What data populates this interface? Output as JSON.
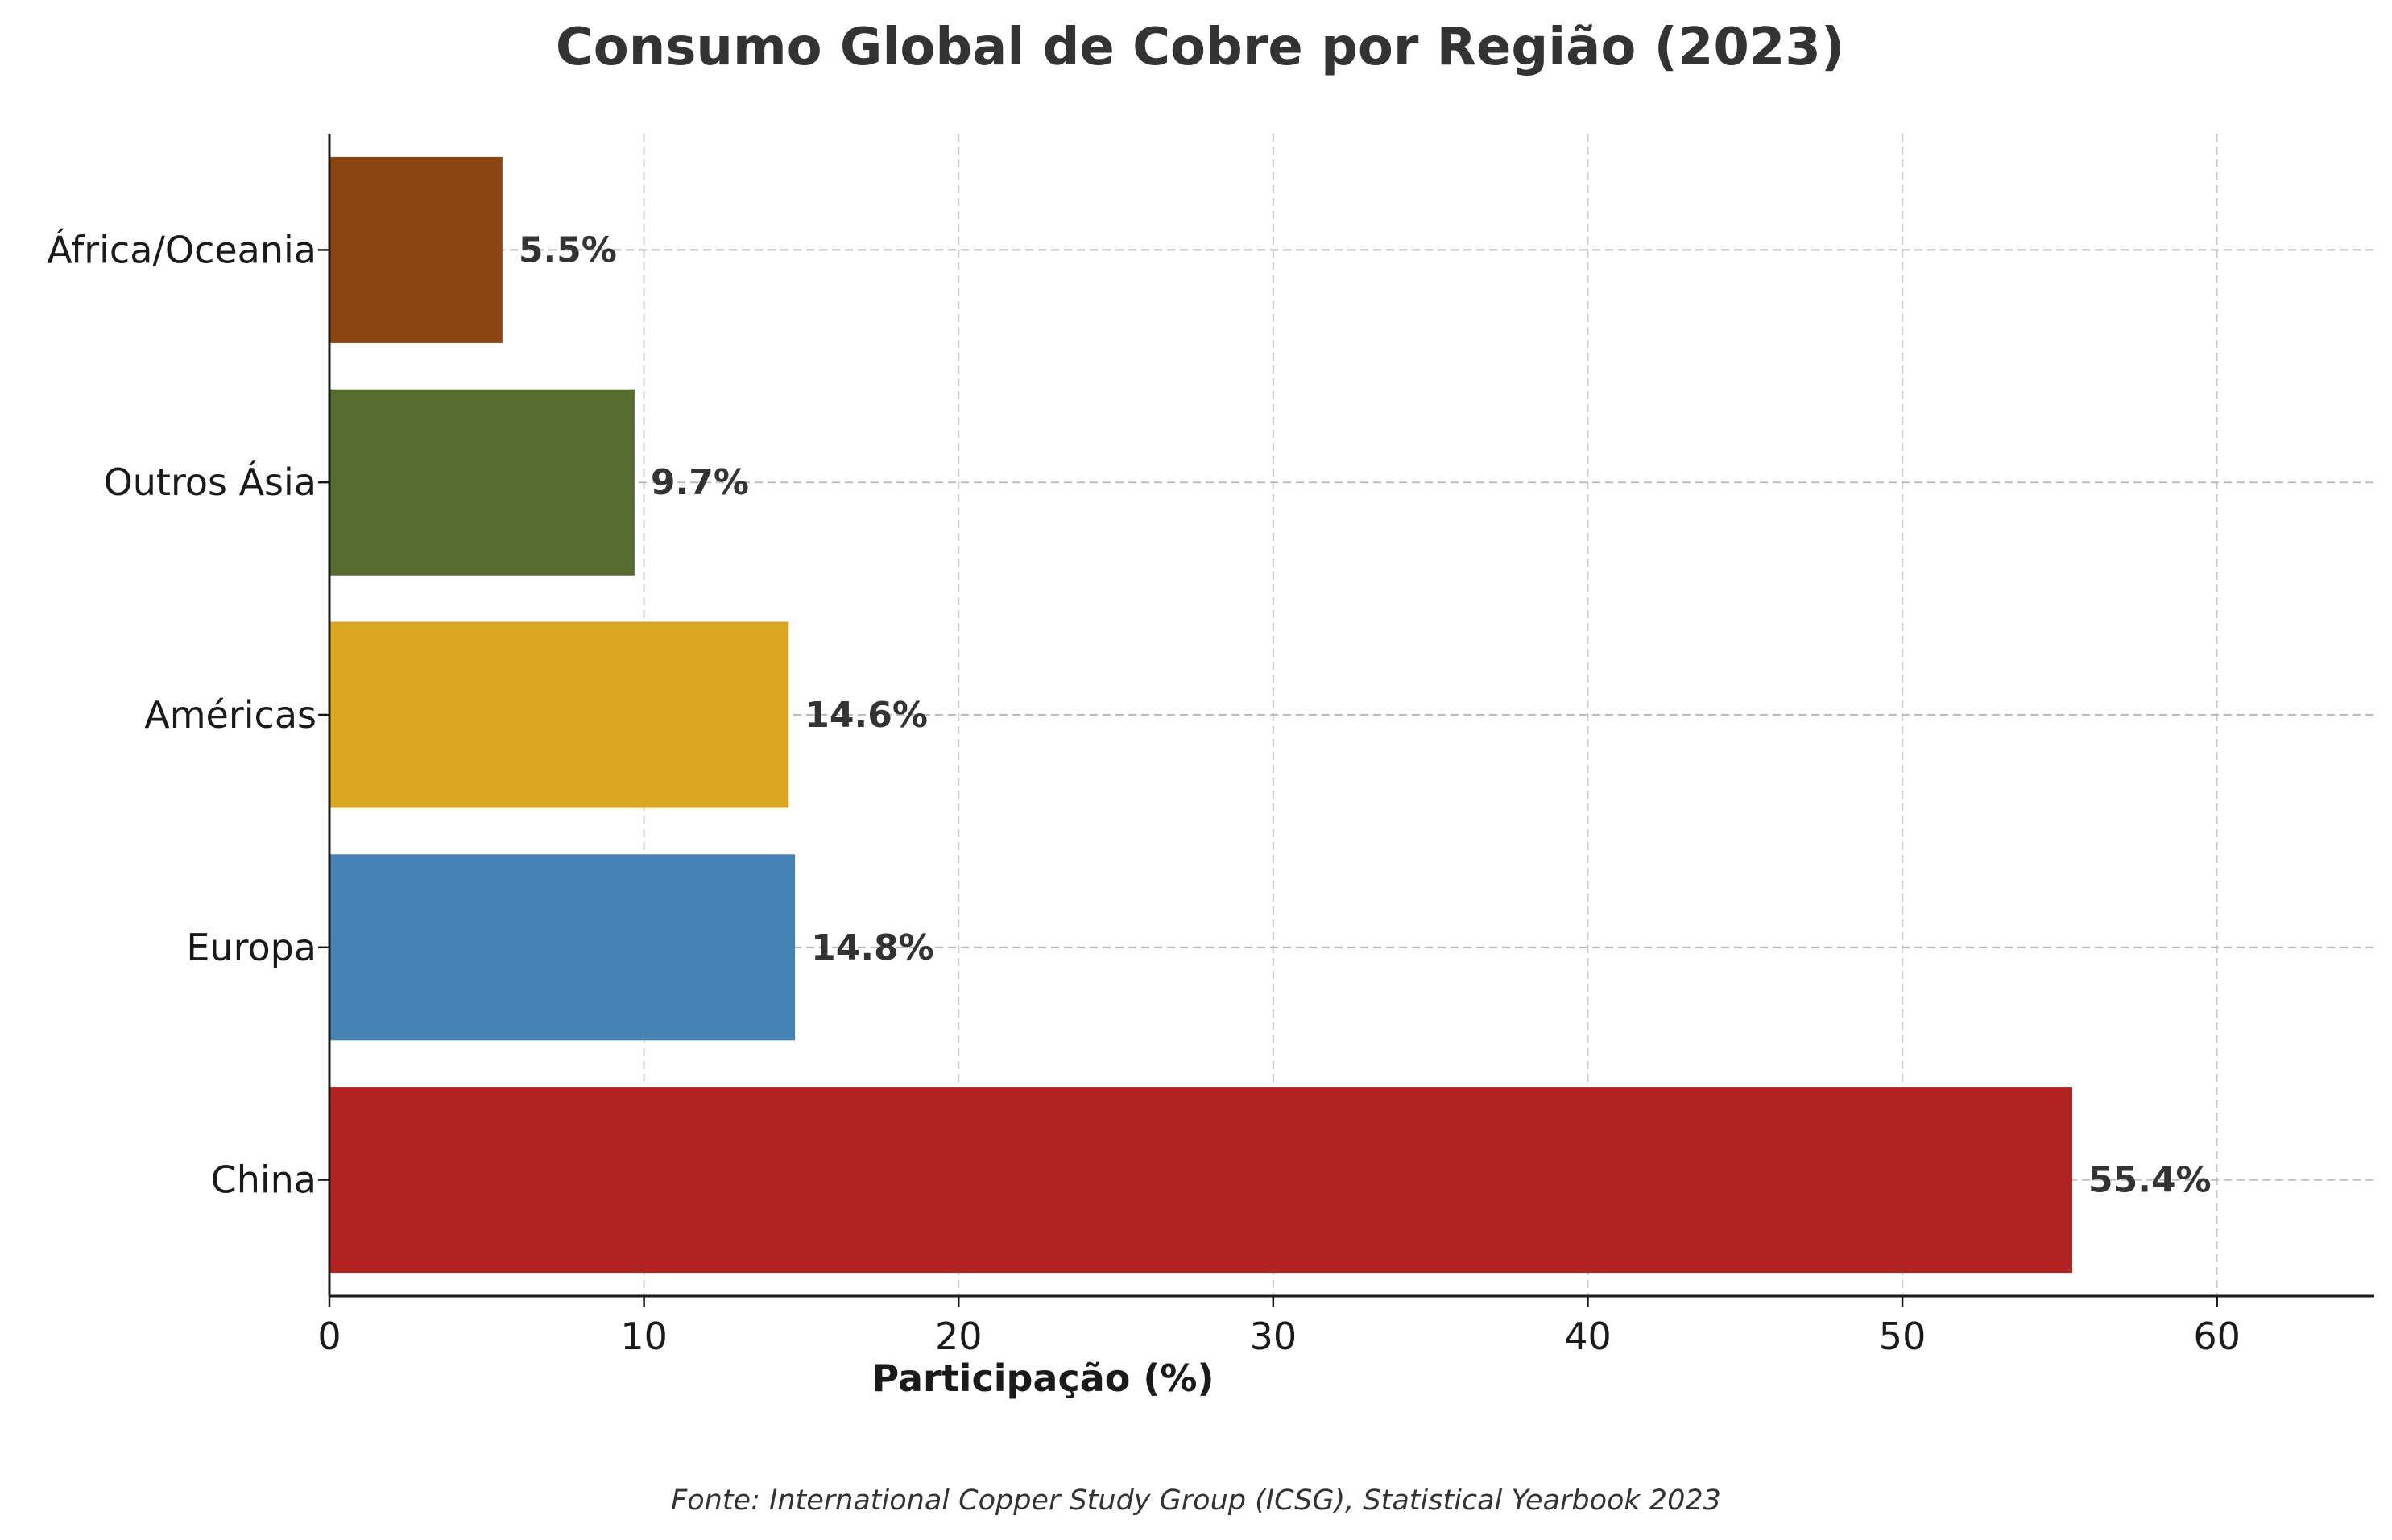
{
  "chart_data": {
    "type": "bar",
    "orientation": "horizontal",
    "title": "Consumo Global de Cobre por Região (2023)",
    "xlabel": "Participação (%)",
    "ylabel": "",
    "xlim": [
      0,
      65
    ],
    "xticks": [
      0,
      10,
      20,
      30,
      40,
      50,
      60
    ],
    "grid": true,
    "categories": [
      "China",
      "Europa",
      "Américas",
      "Outros Ásia",
      "África/Oceania"
    ],
    "values": [
      55.4,
      14.8,
      14.6,
      9.7,
      5.5
    ],
    "value_labels": [
      "55.4%",
      "14.8%",
      "14.6%",
      "9.7%",
      "5.5%"
    ],
    "colors": [
      "#b22222",
      "#4682b4",
      "#daa520",
      "#556b2f",
      "#8b4513"
    ],
    "source": "Fonte: International Copper Study Group (ICSG), Statistical Yearbook 2023"
  }
}
